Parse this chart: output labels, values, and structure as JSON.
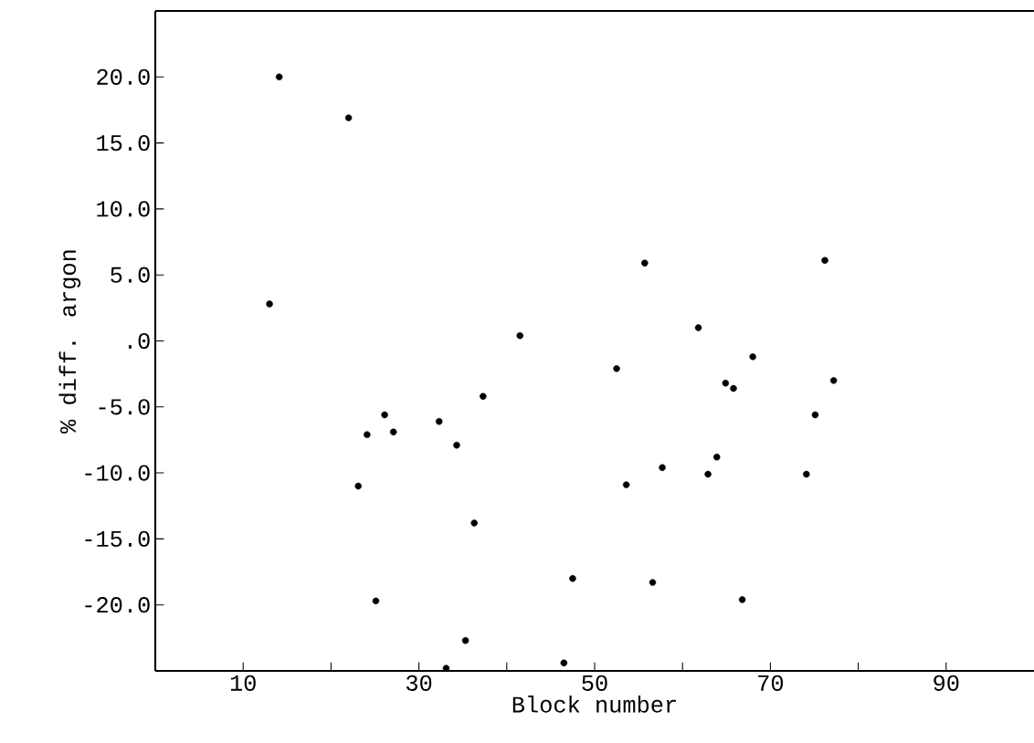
{
  "chart_data": {
    "type": "scatter",
    "xlabel": "Block number",
    "ylabel": "% diff. argon",
    "xlim": [
      0,
      100
    ],
    "ylim": [
      -25,
      25
    ],
    "xticks": [
      10,
      {
        "value": 20,
        "label": null
      },
      30,
      {
        "value": 40,
        "label": null
      },
      50,
      {
        "value": 60,
        "label": null
      },
      70,
      {
        "value": 80,
        "label": null
      },
      90
    ],
    "yticks": [
      {
        "value": -20,
        "label": "-20.0"
      },
      {
        "value": -15,
        "label": "-15.0"
      },
      {
        "value": -10,
        "label": "-10.0"
      },
      {
        "value": -5,
        "label": "-5.0"
      },
      {
        "value": 0,
        "label": ".0"
      },
      {
        "value": 5,
        "label": "5.0"
      },
      {
        "value": 10,
        "label": "10.0"
      },
      {
        "value": 15,
        "label": "15.0"
      },
      {
        "value": 20,
        "label": "20.0"
      }
    ],
    "marker": "circle",
    "series": [
      {
        "color": "#000000",
        "x": [
          14.1,
          22.0,
          13.0,
          41.5,
          55.7,
          76.2,
          61.8,
          68.0,
          52.5,
          64.9,
          65.8,
          77.2,
          75.1,
          63.9,
          57.7,
          62.9,
          74.1,
          37.3,
          26.1,
          24.1,
          27.1,
          32.3,
          34.3,
          23.1,
          36.3,
          47.5,
          25.1,
          35.3,
          46.5,
          33.1,
          53.6,
          56.6,
          66.8
        ],
        "values": [
          20.0,
          16.9,
          2.8,
          0.4,
          5.9,
          6.1,
          1.0,
          -1.2,
          -2.1,
          -3.2,
          -3.6,
          -3.0,
          -5.6,
          -8.8,
          -9.6,
          -10.1,
          -10.1,
          -4.2,
          -5.6,
          -7.1,
          -6.9,
          -6.1,
          -7.9,
          -11.0,
          -13.8,
          -18.0,
          -19.7,
          -22.7,
          -24.4,
          -24.8,
          -10.9,
          -18.3,
          -19.6
        ]
      }
    ]
  }
}
